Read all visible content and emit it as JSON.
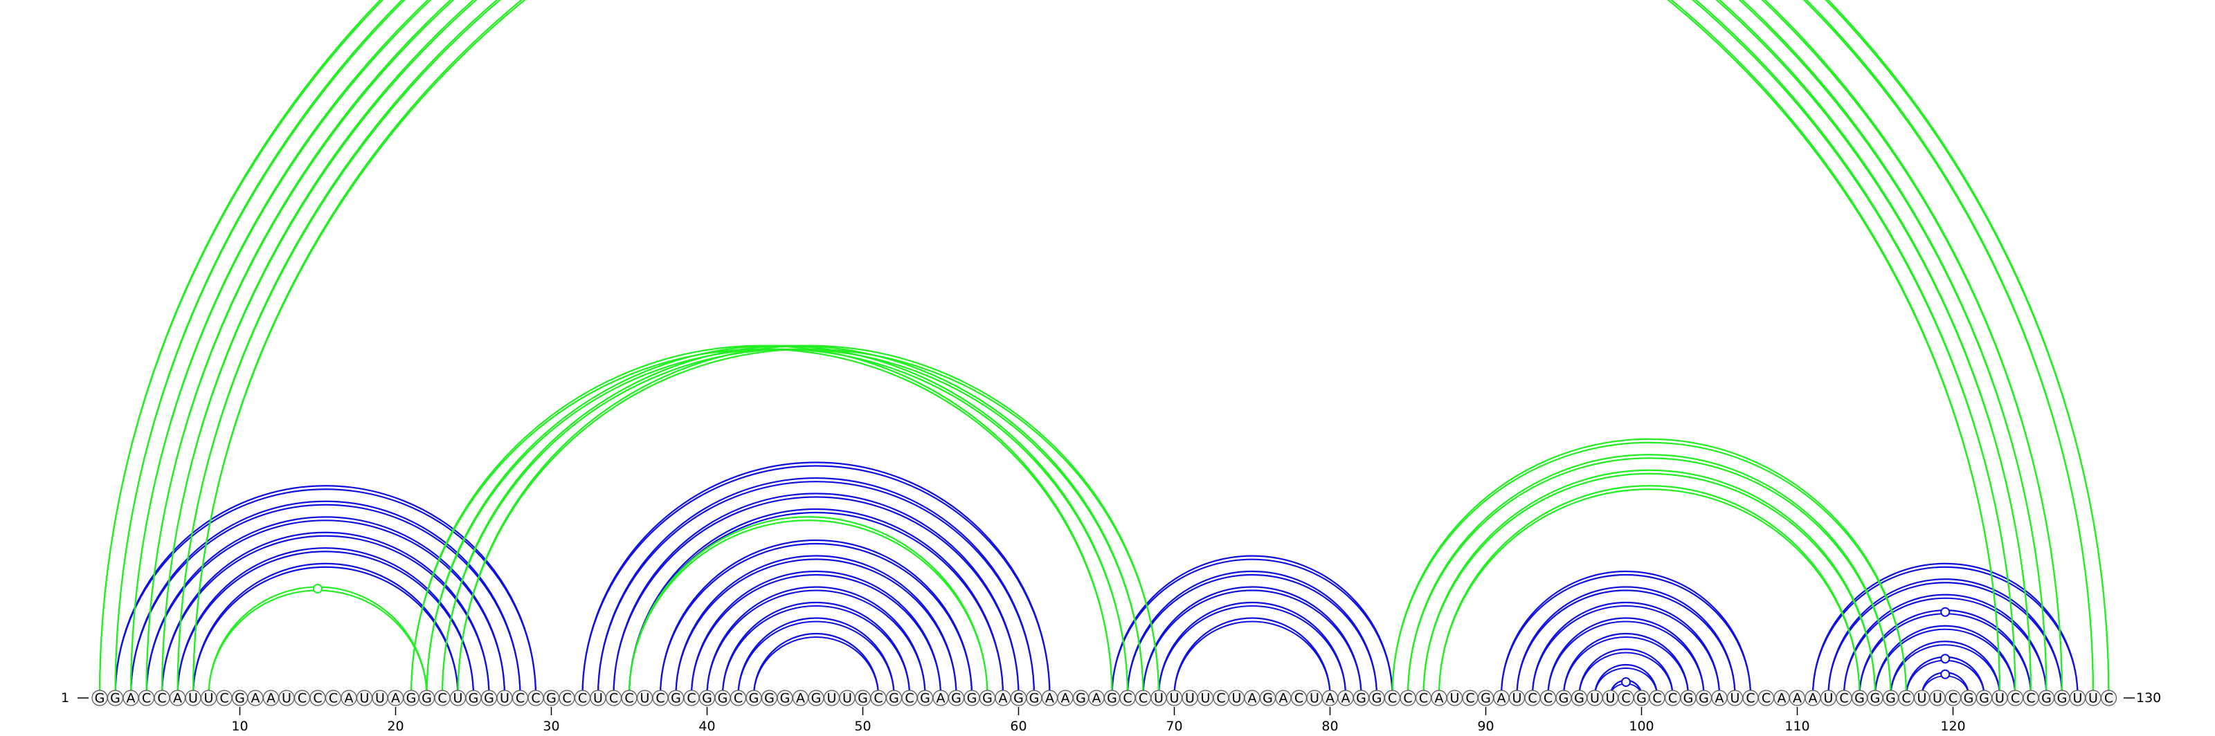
{
  "sequence": "GGACCAUUCGAAUCCCAUUAGGCUGGUCCGCCUCCUCGCGGCGGGAGUUGCGCGAGGGAGGAAGAGCCUUUUCUAGACUAAGGCCCAUCGAUCCGGUUCGCCGGAUCCAAAUCGGGCUUCGGUCCGGUUC",
  "start_label": "1",
  "end_label": "130",
  "tick_labels": [
    "10",
    "20",
    "30",
    "40",
    "50",
    "60",
    "70",
    "80",
    "90",
    "100",
    "110",
    "120"
  ],
  "colors": {
    "blue_arcs": "#1010e0",
    "green_arcs": "#22ee22",
    "nucleotide_fill": "#f2f2f2"
  },
  "chart_data": {
    "type": "arc_diagram",
    "length": 130,
    "blue_pairs": [
      [
        2,
        29
      ],
      [
        3,
        28
      ],
      [
        4,
        27
      ],
      [
        5,
        26
      ],
      [
        6,
        25
      ],
      [
        7,
        24
      ],
      [
        32,
        62
      ],
      [
        33,
        61
      ],
      [
        34,
        60
      ],
      [
        35,
        59
      ],
      [
        37,
        57
      ],
      [
        38,
        56
      ],
      [
        39,
        55
      ],
      [
        40,
        54
      ],
      [
        41,
        53
      ],
      [
        42,
        52
      ],
      [
        43,
        51
      ],
      [
        66,
        84
      ],
      [
        67,
        83
      ],
      [
        68,
        82
      ],
      [
        69,
        81
      ],
      [
        70,
        80
      ],
      [
        91,
        107
      ],
      [
        92,
        106
      ],
      [
        93,
        105
      ],
      [
        94,
        104
      ],
      [
        95,
        103
      ],
      [
        96,
        102
      ],
      [
        97,
        101
      ],
      [
        98,
        100
      ],
      [
        111,
        128
      ],
      [
        112,
        127
      ],
      [
        113,
        126
      ],
      [
        114,
        125
      ],
      [
        115,
        124
      ],
      [
        116,
        123
      ],
      [
        117,
        122
      ],
      [
        118,
        121
      ]
    ],
    "green_pairs": [
      [
        1,
        130
      ],
      [
        2,
        129
      ],
      [
        3,
        127
      ],
      [
        4,
        126
      ],
      [
        5,
        125
      ],
      [
        6,
        124
      ],
      [
        7,
        123
      ],
      [
        8,
        22
      ],
      [
        21,
        66
      ],
      [
        22,
        67
      ],
      [
        23,
        68
      ],
      [
        24,
        69
      ],
      [
        35,
        58
      ],
      [
        84,
        117
      ],
      [
        85,
        116
      ],
      [
        86,
        115
      ],
      [
        87,
        114
      ]
    ],
    "noncanonical_markers": [
      {
        "pair": [
          1,
          130
        ],
        "color": "green"
      },
      {
        "pair": [
          8,
          22
        ],
        "color": "green"
      },
      {
        "pair": [
          98,
          100
        ],
        "color": "blue"
      },
      {
        "pair": [
          117,
          122
        ],
        "color": "blue"
      },
      {
        "pair": [
          118,
          121
        ],
        "color": "blue"
      },
      {
        "pair": [
          114,
          125
        ],
        "color": "blue"
      }
    ]
  }
}
